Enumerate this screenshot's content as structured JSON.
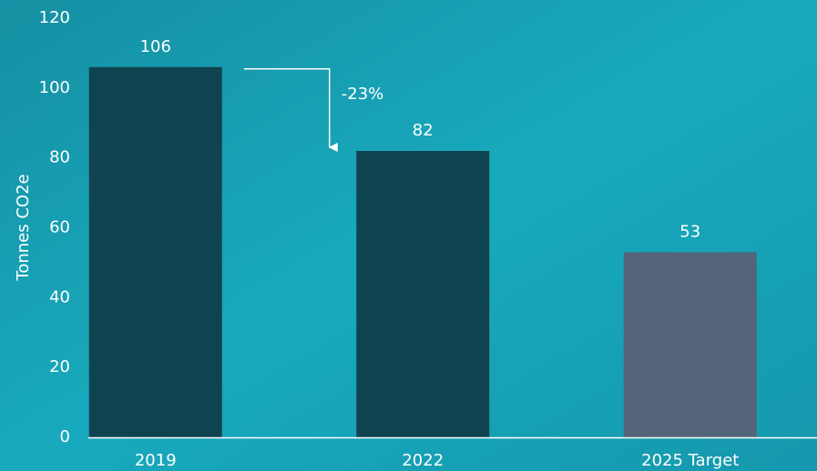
{
  "chart_data": {
    "type": "bar",
    "y_label": "Tonnes CO2e",
    "categories": [
      "2019",
      "2022",
      "2025 Target"
    ],
    "values": [
      106,
      82,
      53
    ],
    "colors": [
      "#0f4350",
      "#0f4350",
      "#546579"
    ],
    "ylim": [
      0,
      120
    ],
    "yticks": [
      0,
      20,
      40,
      60,
      80,
      100,
      120
    ],
    "grid": false,
    "annotation": "-23%"
  }
}
